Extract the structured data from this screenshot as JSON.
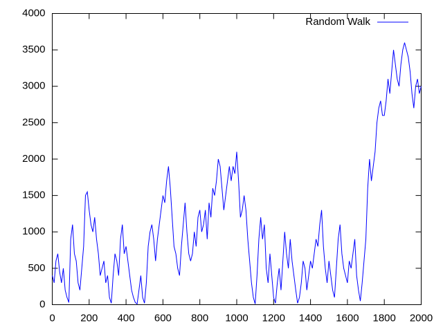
{
  "chart_data": {
    "type": "line",
    "x": [
      0,
      10,
      20,
      30,
      40,
      50,
      60,
      70,
      80,
      90,
      100,
      110,
      120,
      130,
      140,
      150,
      160,
      170,
      180,
      190,
      200,
      210,
      220,
      230,
      240,
      250,
      260,
      270,
      280,
      290,
      300,
      310,
      320,
      330,
      340,
      350,
      360,
      370,
      380,
      390,
      400,
      410,
      420,
      430,
      440,
      450,
      460,
      470,
      480,
      490,
      500,
      510,
      520,
      530,
      540,
      550,
      560,
      570,
      580,
      590,
      600,
      610,
      620,
      630,
      640,
      650,
      660,
      670,
      680,
      690,
      700,
      710,
      720,
      730,
      740,
      750,
      760,
      770,
      780,
      790,
      800,
      810,
      820,
      830,
      840,
      850,
      860,
      870,
      880,
      890,
      900,
      910,
      920,
      930,
      940,
      950,
      960,
      970,
      980,
      990,
      1000,
      1010,
      1020,
      1030,
      1040,
      1050,
      1060,
      1070,
      1080,
      1090,
      1100,
      1110,
      1120,
      1130,
      1140,
      1150,
      1160,
      1170,
      1180,
      1190,
      1200,
      1210,
      1220,
      1230,
      1240,
      1250,
      1260,
      1270,
      1280,
      1290,
      1300,
      1310,
      1320,
      1330,
      1340,
      1350,
      1360,
      1370,
      1380,
      1390,
      1400,
      1410,
      1420,
      1430,
      1440,
      1450,
      1460,
      1470,
      1480,
      1490,
      1500,
      1510,
      1520,
      1530,
      1540,
      1550,
      1560,
      1570,
      1580,
      1590,
      1600,
      1610,
      1620,
      1630,
      1640,
      1650,
      1660,
      1670,
      1680,
      1690,
      1700,
      1710,
      1720,
      1730,
      1740,
      1750,
      1760,
      1770,
      1780,
      1790,
      1800,
      1810,
      1820,
      1830,
      1840,
      1850,
      1860,
      1870,
      1880,
      1890,
      1900,
      1910,
      1920,
      1930,
      1940,
      1950,
      1960,
      1970,
      1980,
      1990,
      2000
    ],
    "series": [
      {
        "name": "Random Walk",
        "color": "#0000ff",
        "values": [
          400,
          300,
          600,
          700,
          450,
          300,
          500,
          200,
          100,
          30,
          900,
          1100,
          700,
          600,
          300,
          200,
          500,
          800,
          1500,
          1550,
          1300,
          1100,
          1000,
          1200,
          900,
          700,
          400,
          500,
          600,
          300,
          400,
          100,
          20,
          400,
          700,
          600,
          400,
          900,
          1100,
          700,
          800,
          600,
          400,
          200,
          100,
          30,
          10,
          200,
          400,
          100,
          20,
          300,
          800,
          1000,
          1100,
          900,
          600,
          900,
          1100,
          1300,
          1500,
          1400,
          1700,
          1900,
          1600,
          1200,
          800,
          700,
          500,
          400,
          800,
          1100,
          1400,
          1000,
          700,
          600,
          700,
          1000,
          800,
          1200,
          1300,
          1000,
          1100,
          1300,
          900,
          1400,
          1200,
          1600,
          1500,
          1700,
          2000,
          1900,
          1600,
          1300,
          1500,
          1700,
          1900,
          1700,
          1900,
          1800,
          2100,
          1700,
          1200,
          1300,
          1500,
          1300,
          900,
          600,
          300,
          100,
          10,
          400,
          900,
          1200,
          900,
          1100,
          500,
          300,
          700,
          400,
          100,
          20,
          300,
          500,
          200,
          600,
          1000,
          700,
          500,
          900,
          600,
          400,
          200,
          20,
          100,
          300,
          600,
          500,
          200,
          400,
          600,
          500,
          700,
          900,
          800,
          1100,
          1300,
          800,
          500,
          300,
          600,
          400,
          200,
          100,
          500,
          900,
          1100,
          700,
          500,
          400,
          300,
          600,
          500,
          700,
          900,
          400,
          200,
          50,
          300,
          600,
          900,
          1600,
          2000,
          1700,
          1900,
          2100,
          2500,
          2700,
          2800,
          2600,
          2600,
          2800,
          3100,
          2900,
          3200,
          3500,
          3300,
          3100,
          3000,
          3300,
          3500,
          3600,
          3500,
          3400,
          3200,
          2900,
          2700,
          3000,
          3100,
          2900,
          3000
        ]
      }
    ],
    "xlim": [
      0,
      2000
    ],
    "xticks": [
      0,
      200,
      400,
      600,
      800,
      1000,
      1200,
      1400,
      1600,
      1800,
      2000
    ],
    "ylim": [
      0,
      4000
    ],
    "yticks": [
      0,
      500,
      1000,
      1500,
      2000,
      2500,
      3000,
      3500,
      4000
    ],
    "grid": false,
    "legend": "top-right"
  }
}
